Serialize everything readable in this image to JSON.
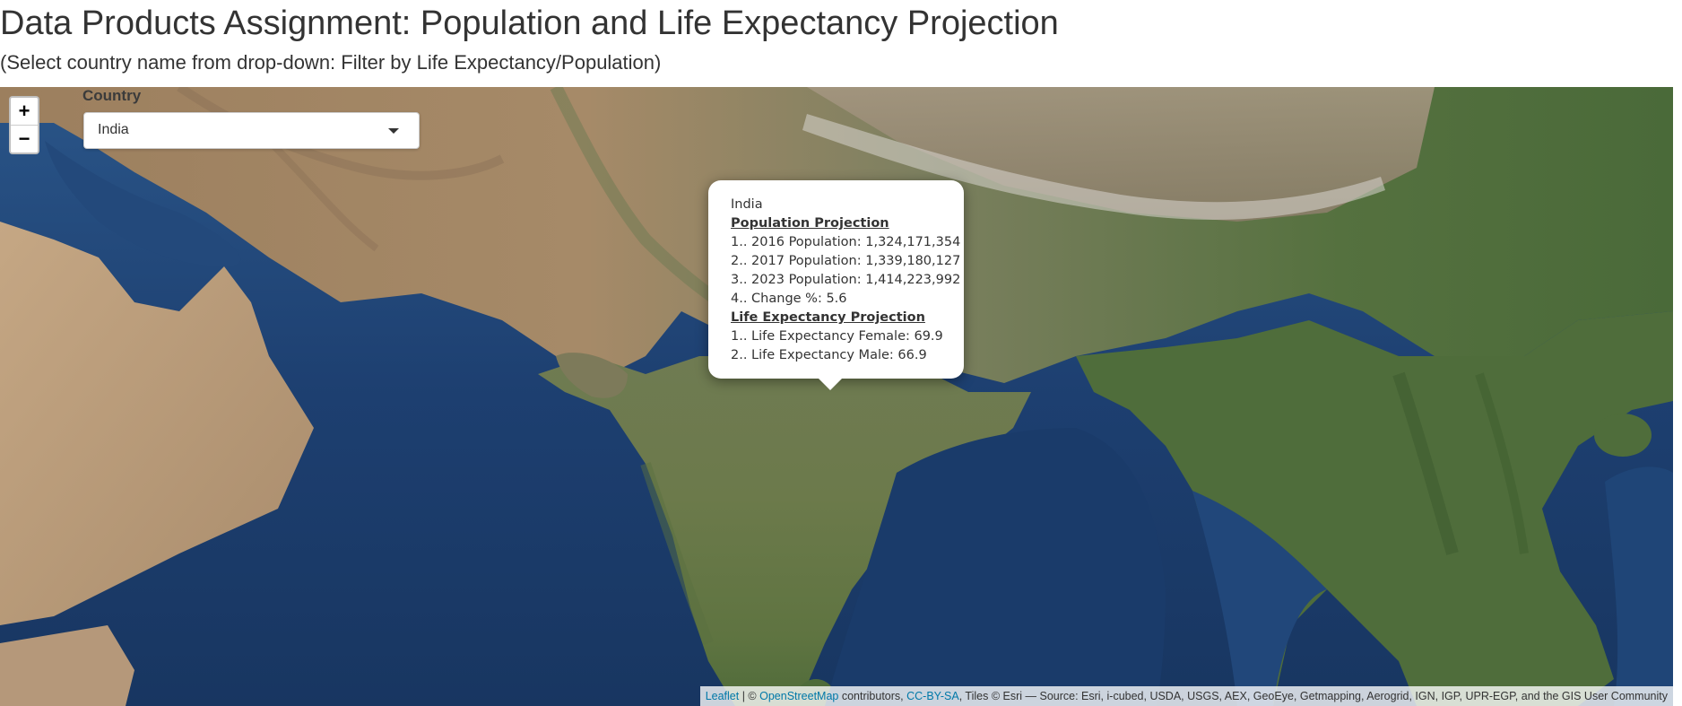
{
  "header": {
    "title": "Data Products Assignment: Population and Life Expectancy Projection",
    "subtitle": "(Select country name from drop-down: Filter by Life Expectancy/Population)"
  },
  "map": {
    "zoom_in_label": "+",
    "zoom_out_label": "−",
    "country_label": "Country",
    "country_selected": "India",
    "popup": {
      "title": "India",
      "population_heading": "Population Projection",
      "population_lines": [
        "1.. 2016 Population: 1,324,171,354",
        "2.. 2017 Population: 1,339,180,127",
        "3.. 2023 Population: 1,414,223,992",
        "4.. Change %: 5.6"
      ],
      "life_heading": "Life Expectancy Projection",
      "life_lines": [
        "1.. Life Expectancy Female: 69.9",
        "2.. Life Expectancy Male: 66.9"
      ]
    },
    "attribution": {
      "leaflet": "Leaflet",
      "sep1": " | © ",
      "osm": "OpenStreetMap",
      "sep2": " contributors, ",
      "ccbysa": "CC-BY-SA",
      "rest": ", Tiles © Esri — Source: Esri, i-cubed, USDA, USGS, AEX, GeoEye, Getmapping, Aerogrid, IGN, IGP, UPR-EGP, and the GIS User Community"
    },
    "colors": {
      "ocean": "#1c3f6e",
      "desert": "#b89a76",
      "vegetation": "#4d6b3a",
      "mountains": "#7a6a55",
      "link": "#0078A8"
    }
  }
}
